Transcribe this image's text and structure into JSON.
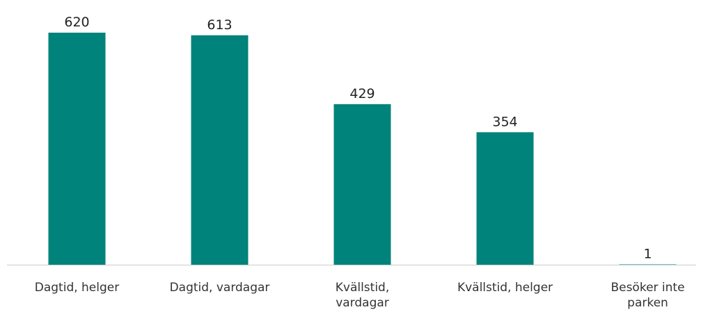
{
  "chart_data": {
    "type": "bar",
    "categories": [
      "Dagtid, helger",
      "Dagtid, vardagar",
      "Kvällstid, vardagar",
      "Kvällstid, helger",
      "Besöker inte parken"
    ],
    "values": [
      620,
      613,
      429,
      354,
      1
    ],
    "color": "#00837a"
  }
}
